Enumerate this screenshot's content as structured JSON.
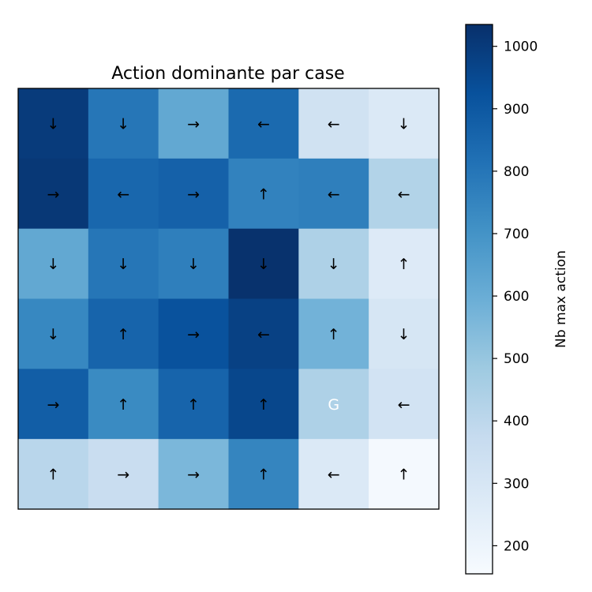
{
  "chart_data": {
    "type": "heatmap",
    "title": "Action dominante par case",
    "grid_size": [
      6,
      6
    ],
    "values": [
      [
        1000,
        800,
        620,
        840,
        330,
        280
      ],
      [
        1010,
        850,
        870,
        760,
        770,
        430
      ],
      [
        620,
        800,
        770,
        1030,
        440,
        270
      ],
      [
        740,
        860,
        920,
        980,
        580,
        300
      ],
      [
        880,
        730,
        860,
        960,
        440,
        320
      ],
      [
        410,
        360,
        560,
        750,
        280,
        170
      ]
    ],
    "arrows": [
      [
        "↓",
        "↓",
        "→",
        "←",
        "←",
        "↓"
      ],
      [
        "→",
        "←",
        "→",
        "↑",
        "←",
        "←"
      ],
      [
        "↓",
        "↓",
        "↓",
        "↓",
        "↓",
        "↑"
      ],
      [
        "↓",
        "↑",
        "→",
        "←",
        "↑",
        "↓"
      ],
      [
        "→",
        "↑",
        "↑",
        "↑",
        "G",
        "←"
      ],
      [
        "↑",
        "→",
        "→",
        "↑",
        "←",
        "↑"
      ]
    ],
    "colorbar": {
      "label": "Nb max action",
      "range": [
        155,
        1035
      ],
      "ticks": [
        200,
        300,
        400,
        500,
        600,
        700,
        800,
        900,
        1000
      ],
      "colormap": "Blues"
    },
    "axes_visible": false
  }
}
